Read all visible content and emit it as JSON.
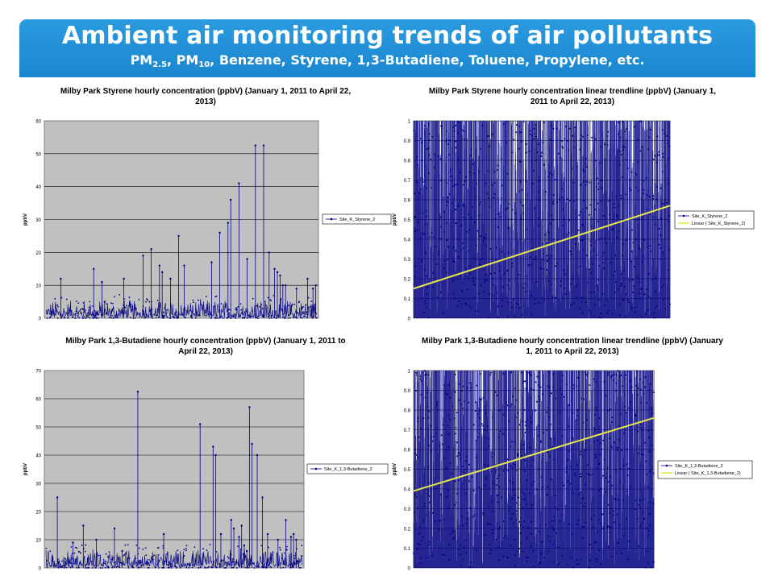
{
  "header": {
    "title": "Ambient air monitoring trends of air pollutants",
    "sub_pm25_a": "PM",
    "sub_pm25_b": "2.5",
    "sub_pm10_a": ", PM",
    "sub_pm10_b": "10",
    "sub_rest": ", Benzene, Styrene, 1,3-Butadiene, Toluene, Propylene,  etc.",
    "colors": {
      "banner": "#1f8fd6",
      "text": "#ffffff"
    }
  },
  "chart_data": [
    {
      "type": "line",
      "title": "Milby Park Styrene hourly concentration (ppbV) (January 1, 2011 to April 22, 2013)",
      "ylabel": "ppbV",
      "ylim": [
        0,
        60
      ],
      "yticks": [
        "0",
        "10",
        "20",
        "30",
        "40",
        "50",
        "60"
      ],
      "grid": true,
      "legend_position": "right",
      "series": [
        {
          "name": "Site_K_Styrene_2",
          "color": "#000080",
          "x": [
            0.06,
            0.18,
            0.21,
            0.22,
            0.29,
            0.36,
            0.39,
            0.42,
            0.43,
            0.46,
            0.49,
            0.51,
            0.61,
            0.64,
            0.67,
            0.68,
            0.71,
            0.74,
            0.77,
            0.8,
            0.82,
            0.84,
            0.85,
            0.86,
            0.87,
            0.88,
            0.92,
            0.96,
            0.98,
            0.99
          ],
          "values": [
            12,
            15,
            11,
            5,
            12,
            19,
            21,
            16,
            14,
            12,
            25,
            16,
            17,
            26,
            29,
            36,
            41,
            18,
            52.5,
            52.5,
            20,
            15,
            14,
            13,
            10,
            10,
            9,
            12,
            9,
            10
          ]
        }
      ]
    },
    {
      "type": "line",
      "title": "Milby Park Styrene hourly concentration linear trendline (ppbV) (January 1, 2011 to April 22, 2013)",
      "ylabel": "ppbV",
      "ylim": [
        0,
        1
      ],
      "yticks": [
        "0",
        "0.1",
        "0.2",
        "0.3",
        "0.4",
        "0.5",
        "0.6",
        "0.7",
        "0.8",
        "0.9",
        "1"
      ],
      "grid": true,
      "legend_position": "right",
      "series": [
        {
          "name": "Site_K_Styrene_2",
          "color": "#000080"
        },
        {
          "name": "Linear ( Site_K_Styrene_2)",
          "color": "#e6e64c",
          "start": 0.15,
          "end": 0.57
        }
      ]
    },
    {
      "type": "line",
      "title": "Milby Park 1,3-Butadiene hourly concentration (ppbV) (January 1, 2011 to April 22, 2013)",
      "ylabel": "ppbV",
      "ylim": [
        0,
        70
      ],
      "yticks": [
        "0",
        "10",
        "20",
        "30",
        "40",
        "50",
        "60",
        "70"
      ],
      "grid": true,
      "legend_position": "right",
      "series": [
        {
          "name": "Site_K_1,3-Butadiene_2",
          "color": "#000080",
          "x": [
            0.05,
            0.11,
            0.15,
            0.2,
            0.27,
            0.3,
            0.36,
            0.46,
            0.6,
            0.65,
            0.66,
            0.68,
            0.72,
            0.73,
            0.75,
            0.76,
            0.77,
            0.78,
            0.79,
            0.8,
            0.82,
            0.84,
            0.86,
            0.9,
            0.93,
            0.95,
            0.96,
            0.97
          ],
          "values": [
            25,
            9,
            15,
            10,
            14,
            6,
            62.5,
            12,
            51,
            43,
            40,
            12,
            17,
            14,
            11,
            15,
            8,
            6,
            57,
            44,
            40,
            25,
            12,
            10,
            17,
            11,
            12,
            10
          ]
        }
      ]
    },
    {
      "type": "line",
      "title": "Milby Park 1,3-Butadiene hourly concentration linear trendline (ppbV) (January 1, 2011 to April 22, 2013)",
      "ylabel": "ppbV",
      "ylim": [
        0,
        1
      ],
      "yticks": [
        "0",
        "0.1",
        "0.2",
        "0.3",
        "0.4",
        "0.5",
        "0.6",
        "0.7",
        "0.8",
        "0.9",
        "1"
      ],
      "grid": true,
      "legend_position": "right",
      "series": [
        {
          "name": "Site_K_1,3-Butadiene_2",
          "color": "#000080"
        },
        {
          "name": "Linear ( Site_K_1,3-Butadiene_2)",
          "color": "#e6e64c",
          "start": 0.39,
          "end": 0.76
        }
      ]
    }
  ]
}
